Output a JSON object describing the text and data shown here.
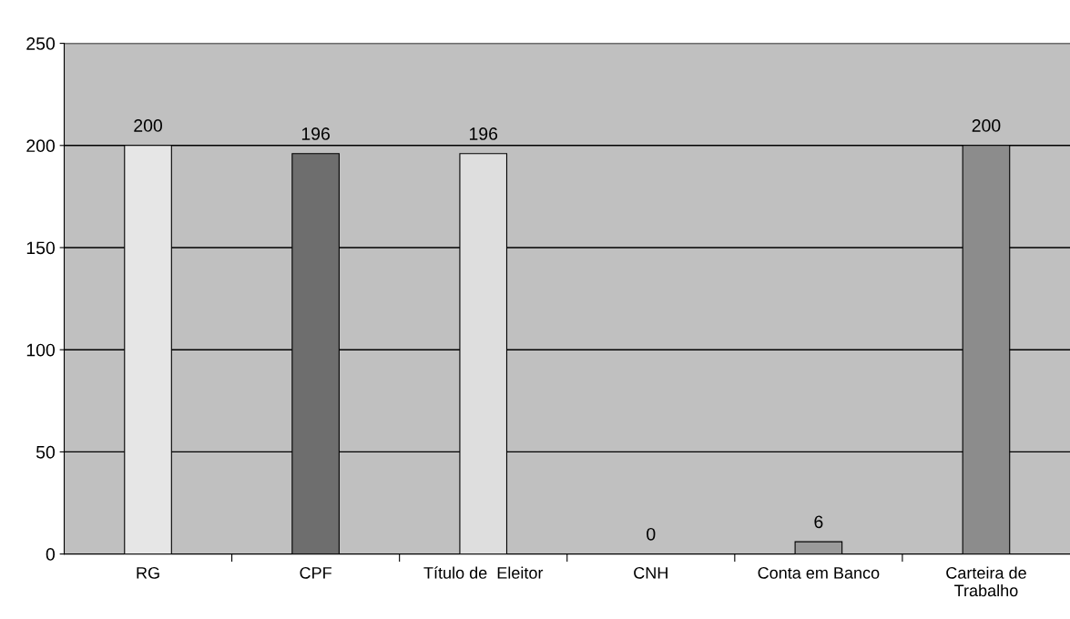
{
  "chart_data": {
    "type": "bar",
    "categories": [
      "RG",
      "CPF",
      "Título de  Eleitor",
      "CNH",
      "Conta em Banco",
      "Carteira de\nTrabalho"
    ],
    "values": [
      200,
      196,
      196,
      0,
      6,
      200
    ],
    "colors": [
      "#e6e6e6",
      "#6e6e6e",
      "#dedede",
      "#a0a0a0",
      "#9a9a9a",
      "#8c8c8c"
    ],
    "ylim": [
      0,
      250
    ],
    "yticks": [
      0,
      50,
      100,
      150,
      200,
      250
    ],
    "grid": "y",
    "data_labels": true,
    "legend": false
  }
}
